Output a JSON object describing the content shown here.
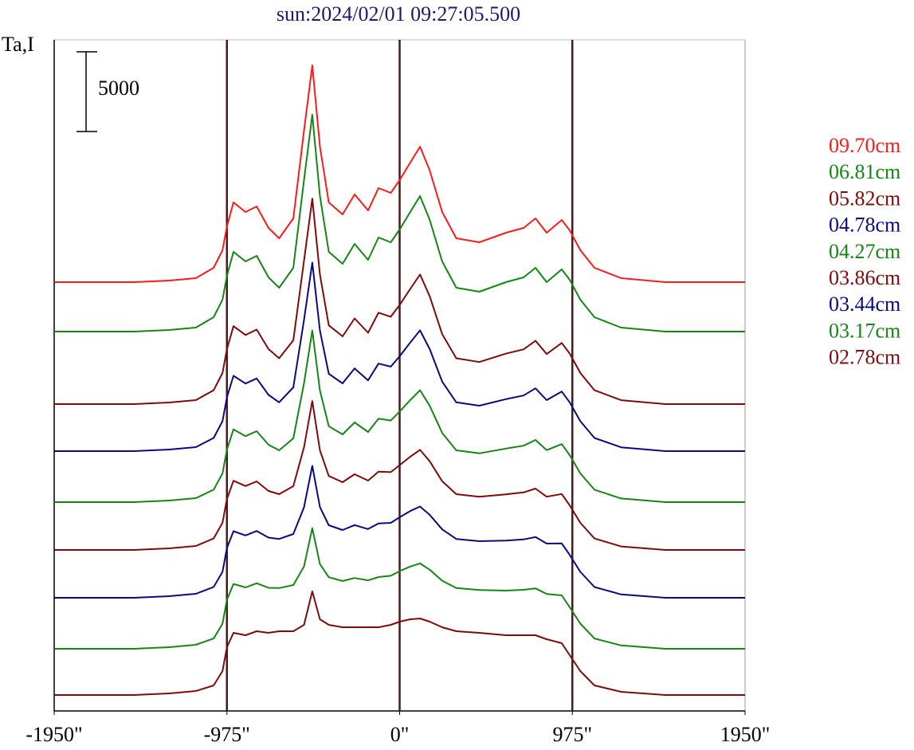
{
  "chart_data": {
    "type": "line",
    "title": "sun:2024/02/01 09:27:05.500",
    "y_label": "Ta,I",
    "scale_bar": 5000,
    "xlim": [
      -1950,
      1950
    ],
    "ylim": [
      0,
      42100
    ],
    "xticks": [
      {
        "value": -1950,
        "label": "-1950\""
      },
      {
        "value": -975,
        "label": "-975\""
      },
      {
        "value": 0,
        "label": "0\""
      },
      {
        "value": 975,
        "label": "975\""
      },
      {
        "value": 1950,
        "label": "1950\""
      }
    ],
    "vlines": [
      -975,
      0,
      975
    ],
    "x": [
      -1950,
      -1500,
      -1300,
      -1150,
      -1050,
      -1000,
      -975,
      -938,
      -870,
      -807,
      -740,
      -680,
      -600,
      -540,
      -493,
      -450,
      -400,
      -322,
      -254,
      -178,
      -119,
      -50,
      0,
      60,
      115,
      170,
      240,
      320,
      450,
      600,
      700,
      767,
      830,
      915,
      960,
      1020,
      1100,
      1250,
      1500,
      1950
    ],
    "series": [
      {
        "name": "09.70cm",
        "color": "#ff1a1a",
        "values": [
          26900,
          26900,
          27000,
          27150,
          27800,
          28900,
          30400,
          31900,
          31300,
          31650,
          30300,
          29650,
          30900,
          36400,
          40500,
          35400,
          31900,
          31150,
          32400,
          31400,
          32800,
          32500,
          33300,
          34400,
          35400,
          33900,
          31300,
          29650,
          29400,
          30000,
          30300,
          30900,
          30000,
          30800,
          30150,
          28900,
          27800,
          27150,
          26900,
          26900
        ]
      },
      {
        "name": "06.81cm",
        "color": "#158515",
        "values": [
          23800,
          23800,
          23900,
          24050,
          24700,
          25800,
          27300,
          28800,
          28200,
          28550,
          27200,
          26550,
          27800,
          33300,
          37400,
          32300,
          28800,
          28050,
          29300,
          28300,
          29700,
          29400,
          30200,
          31300,
          32300,
          30800,
          28200,
          26550,
          26300,
          26900,
          27200,
          27800,
          26900,
          27700,
          27050,
          25800,
          24700,
          24050,
          23800,
          23800
        ]
      },
      {
        "name": "05.82cm",
        "color": "#800a0a",
        "values": [
          19250,
          19250,
          19350,
          19500,
          20120,
          21200,
          22700,
          24140,
          23585,
          23925,
          22700,
          22125,
          23250,
          28240,
          32140,
          27375,
          24190,
          23500,
          24625,
          23725,
          24985,
          24730,
          25470,
          26475,
          27380,
          26010,
          23635,
          22125,
          21890,
          22415,
          22685,
          23225,
          22390,
          23085,
          22425,
          21200,
          20120,
          19495,
          19250,
          19250
        ]
      },
      {
        "name": "04.78cm",
        "color": "#0a0a80",
        "values": [
          16300,
          16300,
          16400,
          16550,
          17125,
          18175,
          19675,
          21025,
          20538,
          20862,
          19825,
          19362,
          20300,
          24525,
          28125,
          23862,
          21150,
          20550,
          21488,
          20738,
          21788,
          21600,
          22250,
          23112,
          23875,
          22700,
          20662,
          19362,
          19150,
          19562,
          19788,
          20238,
          19500,
          20038,
          19362,
          18175,
          17125,
          16538,
          16300,
          16300
        ]
      },
      {
        "name": "04.27cm",
        "color": "#158515",
        "values": [
          13100,
          13100,
          13200,
          13350,
          13880,
          14900,
          16400,
          17660,
          17240,
          17550,
          16700,
          16350,
          17100,
          20560,
          23860,
          20100,
          17860,
          17350,
          18100,
          17500,
          18340,
          18220,
          18780,
          19500,
          20120,
          19140,
          17440,
          16350,
          16160,
          16460,
          16640,
          17000,
          16360,
          16740,
          16050,
          14900,
          13880,
          13330,
          13100,
          13100
        ]
      },
      {
        "name": "03.86cm",
        "color": "#800a0a",
        "values": [
          10100,
          10100,
          10200,
          10350,
          10820,
          11800,
          13300,
          14440,
          14110,
          14400,
          13800,
          13600,
          14100,
          16540,
          19440,
          16350,
          14740,
          14350,
          14850,
          14450,
          15010,
          14980,
          15420,
          15950,
          16380,
          15660,
          14410,
          13600,
          13440,
          13590,
          13710,
          13950,
          13440,
          13610,
          12900,
          11800,
          10820,
          10320,
          10100,
          10100
        ]
      },
      {
        "name": "03.44cm",
        "color": "#0a0a80",
        "values": [
          7100,
          7100,
          7200,
          7350,
          7775,
          8725,
          10225,
          11275,
          11012,
          11288,
          10875,
          10788,
          11100,
          12775,
          15375,
          12788,
          11650,
          11350,
          11662,
          11412,
          11762,
          11800,
          12150,
          12538,
          12825,
          12300,
          11388,
          10788,
          10650,
          10688,
          10762,
          10912,
          10500,
          10512,
          9788,
          8725,
          7775,
          7312,
          7100,
          7100
        ]
      },
      {
        "name": "03.17cm",
        "color": "#158515",
        "values": [
          3900,
          3900,
          4000,
          4150,
          4545,
          5475,
          6975,
          7965,
          7748,
          8012,
          7725,
          7712,
          7900,
          9065,
          11465,
          9212,
          8390,
          8150,
          8338,
          8188,
          8398,
          8480,
          8770,
          9062,
          9255,
          8860,
          8172,
          7712,
          7590,
          7552,
          7598,
          7688,
          7340,
          7248,
          6512,
          5475,
          4545,
          4108,
          3900,
          3900
        ]
      },
      {
        "name": "02.78cm",
        "color": "#800a0a",
        "values": [
          1000,
          1000,
          1100,
          1250,
          1600,
          2500,
          4000,
          4900,
          4750,
          5000,
          4900,
          5000,
          5000,
          5400,
          7500,
          5750,
          5400,
          5250,
          5250,
          5250,
          5250,
          5400,
          5600,
          5750,
          5800,
          5600,
          5250,
          5000,
          4900,
          4750,
          4750,
          4750,
          4500,
          4250,
          3500,
          2500,
          1600,
          1200,
          1000,
          1000
        ]
      }
    ]
  }
}
